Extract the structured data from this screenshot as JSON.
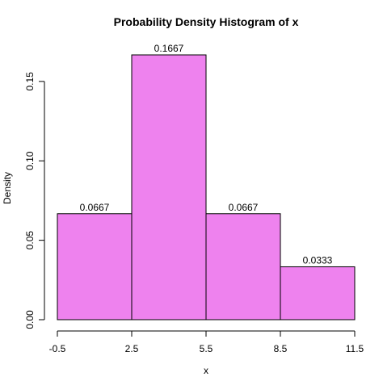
{
  "chart_data": {
    "type": "bar",
    "title": "Probability Density Histogram of x",
    "xlabel": "x",
    "ylabel": "Density",
    "bins": [
      {
        "start": -0.5,
        "end": 2.5,
        "density": 0.0667,
        "label": "0.0667"
      },
      {
        "start": 2.5,
        "end": 5.5,
        "density": 0.1667,
        "label": "0.1667"
      },
      {
        "start": 5.5,
        "end": 8.5,
        "density": 0.0667,
        "label": "0.0667"
      },
      {
        "start": 8.5,
        "end": 11.5,
        "density": 0.0333,
        "label": "0.0333"
      }
    ],
    "xticks": [
      {
        "value": -0.5,
        "label": "-0.5"
      },
      {
        "value": 2.5,
        "label": "2.5"
      },
      {
        "value": 5.5,
        "label": "5.5"
      },
      {
        "value": 8.5,
        "label": "8.5"
      },
      {
        "value": 11.5,
        "label": "11.5"
      }
    ],
    "yticks": [
      {
        "value": 0,
        "label": "0.00"
      },
      {
        "value": 0.05,
        "label": "0.05"
      },
      {
        "value": 0.1,
        "label": "0.10"
      },
      {
        "value": 0.15,
        "label": "0.15"
      }
    ],
    "xlim": [
      -0.5,
      11.5
    ],
    "ylim": [
      0,
      0.1667
    ],
    "grid": false,
    "bar_color": "#EE82EE",
    "bar_edge_color": "#000000"
  }
}
